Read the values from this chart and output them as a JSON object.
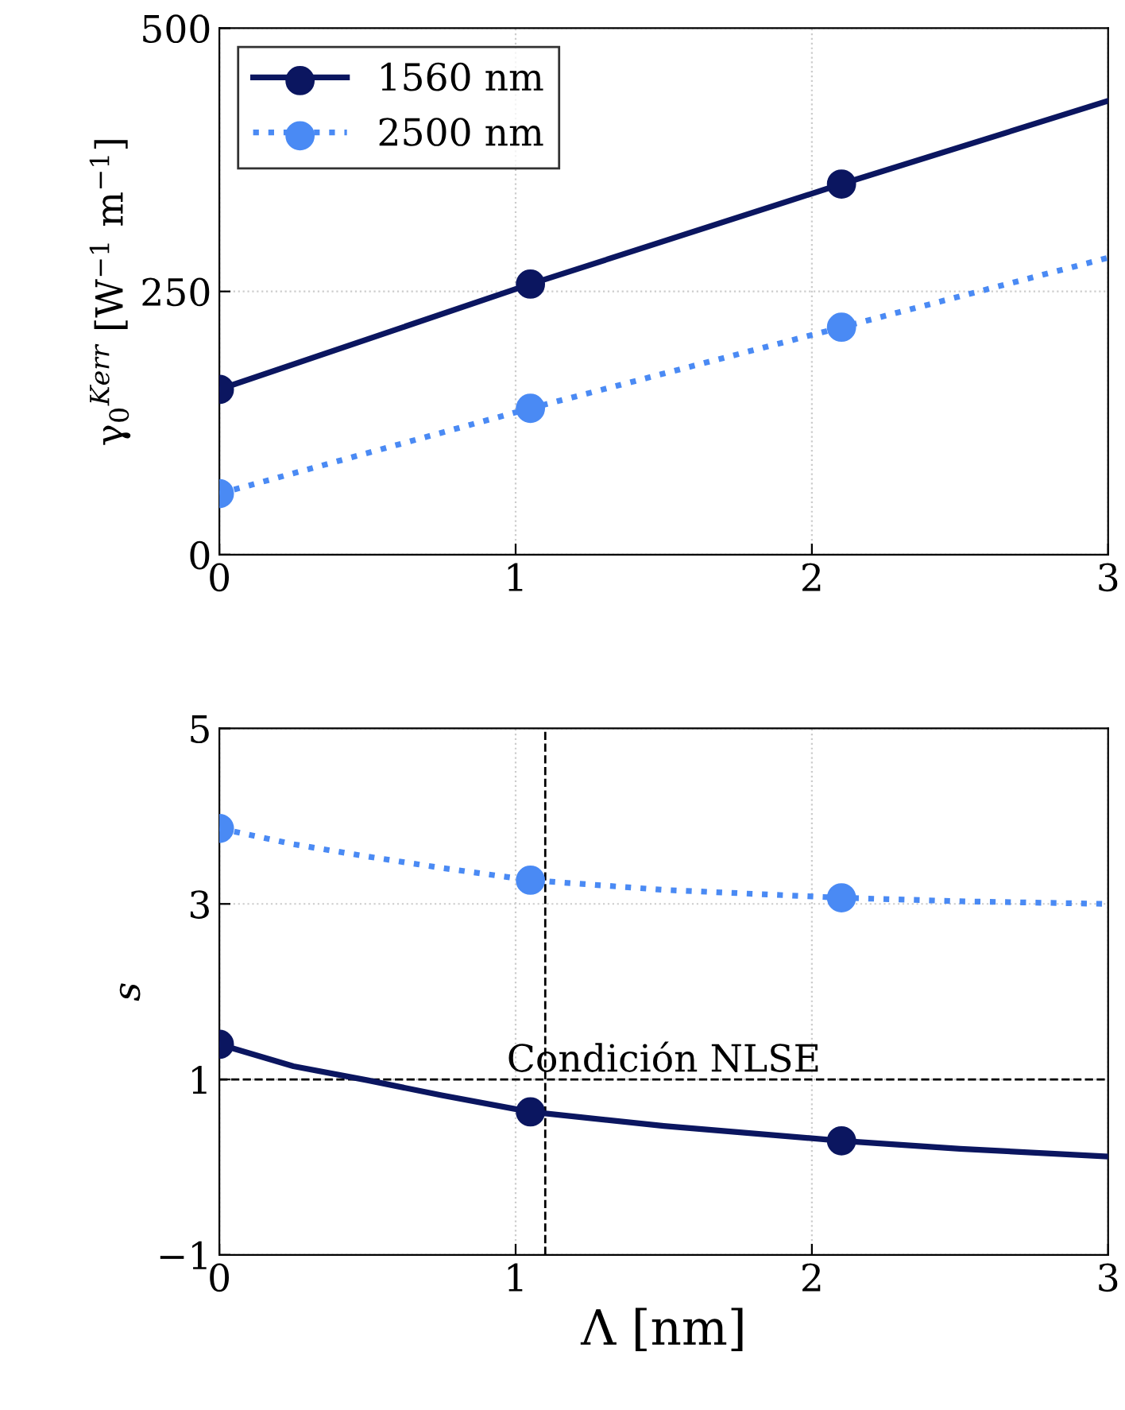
{
  "chart_data": [
    {
      "type": "line",
      "ylabel": "γ$_{0}$$^{Kerr}$ [W$^{−1}$ m$^{−1}$]",
      "xlim": [
        0,
        3
      ],
      "xticks": [
        0,
        1,
        2,
        3
      ],
      "ylim": [
        0,
        500
      ],
      "yticks": [
        0,
        250,
        500
      ],
      "grid": true,
      "legend": "top left",
      "series": [
        {
          "name": "1560 nm",
          "color": "#0b1660",
          "line_style": "solid",
          "marker": "none",
          "x": [
            0,
            1.05,
            2.1,
            3
          ],
          "values": [
            157,
            257,
            352,
            431
          ]
        },
        {
          "name": "2500 nm",
          "color": "#4a8af4",
          "line_style": "dotted",
          "marker": "none",
          "x": [
            0,
            1.05,
            2.1,
            3
          ],
          "values": [
            58,
            139,
            216,
            282
          ]
        },
        {
          "type": "scatter",
          "color": "#0b1660",
          "marker": "circle",
          "x": [
            0,
            1.05,
            2.1
          ],
          "values": [
            157,
            257,
            352
          ]
        },
        {
          "type": "scatter",
          "color": "#4a8af4",
          "marker": "circle",
          "x": [
            0,
            1.05,
            2.1
          ],
          "values": [
            58,
            139,
            216
          ]
        }
      ]
    },
    {
      "type": "line",
      "ylabel": "s",
      "xlabel": "Λ [nm]",
      "xlim": [
        0,
        3
      ],
      "xticks": [
        0,
        1,
        2,
        3
      ],
      "ylim": [
        -1,
        5
      ],
      "yticks": [
        {
          "value": -1,
          "label": "−1"
        },
        1,
        3,
        5
      ],
      "grid": true,
      "ref_lines": [
        {
          "axis": "y",
          "value": 1,
          "label": "Condición NLSE",
          "line_style": "dashed",
          "color": "#000000"
        },
        {
          "axis": "x",
          "value": 1.1,
          "line_style": "dashed",
          "color": "#000000"
        }
      ],
      "series": [
        {
          "color": "#0b1660",
          "line_style": "solid",
          "marker": "none",
          "x": [
            0,
            0.25,
            0.5,
            0.75,
            1.05,
            1.5,
            2.1,
            2.5,
            3
          ],
          "values": [
            1.4,
            1.15,
            0.99,
            0.82,
            0.63,
            0.47,
            0.3,
            0.21,
            0.12
          ]
        },
        {
          "color": "#4a8af4",
          "line_style": "dotted",
          "marker": "none",
          "x": [
            0,
            0.25,
            0.5,
            0.75,
            1.05,
            1.5,
            2.1,
            2.5,
            3
          ],
          "values": [
            3.86,
            3.68,
            3.54,
            3.41,
            3.27,
            3.16,
            3.07,
            3.03,
            3.0
          ]
        },
        {
          "type": "scatter",
          "color": "#0b1660",
          "marker": "circle",
          "x": [
            0,
            1.05,
            2.1
          ],
          "values": [
            1.4,
            0.63,
            0.3
          ]
        },
        {
          "type": "scatter",
          "color": "#4a8af4",
          "marker": "circle",
          "x": [
            0,
            1.05,
            2.1
          ],
          "values": [
            3.86,
            3.27,
            3.07
          ]
        }
      ]
    }
  ]
}
